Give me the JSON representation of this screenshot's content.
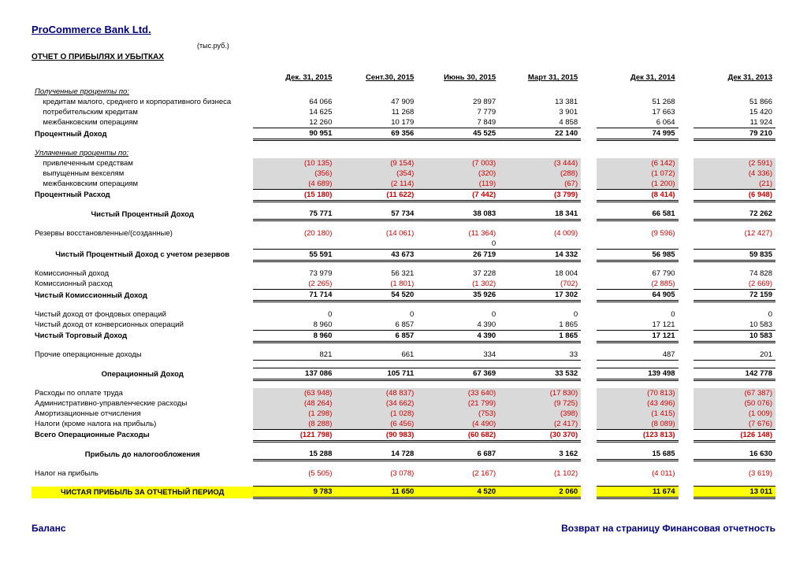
{
  "company": "ProCommerce Bank Ltd.",
  "units": "(тыс.руб.)",
  "report_title": "ОТЧЕТ О ПРИБЫЛЯХ И УБЫТКАХ",
  "headers": [
    "Дек. 31, 2015",
    "Сент.30, 2015",
    "Июнь 30, 2015",
    "Март 31, 2015",
    "Дек 31, 2014",
    "Дек 31, 2013"
  ],
  "sections": {
    "received_interest_header": "Полученные проценты по:",
    "paid_interest_header": "Уплаченные проценты по:"
  },
  "rows": {
    "r1": {
      "label": "кредитам малого, среднего и корпоративного бизнеса",
      "v": [
        "64 066",
        "47 909",
        "29 897",
        "13 381",
        "51 268",
        "51 866"
      ]
    },
    "r2": {
      "label": "потребительским кредитам",
      "v": [
        "14 625",
        "11 268",
        "7 779",
        "3 901",
        "17 663",
        "15 420"
      ]
    },
    "r3": {
      "label": "межбанковским операциям",
      "v": [
        "12 260",
        "10 179",
        "7 849",
        "4 858",
        "6 064",
        "11 924"
      ]
    },
    "r4": {
      "label": "Процентный Доход",
      "v": [
        "90 951",
        "69 356",
        "45 525",
        "22 140",
        "74 995",
        "79 210"
      ]
    },
    "r5": {
      "label": "привлеченным средствам",
      "v": [
        "(10 135)",
        "(9 154)",
        "(7 003)",
        "(3 444)",
        "(6 142)",
        "(2 591)"
      ]
    },
    "r6": {
      "label": "выпущенным векселям",
      "v": [
        "(356)",
        "(354)",
        "(320)",
        "(288)",
        "(1 072)",
        "(4 336)"
      ]
    },
    "r7": {
      "label": "межбанковским операциям",
      "v": [
        "(4 689)",
        "(2 114)",
        "(119)",
        "(67)",
        "(1 200)",
        "(21)"
      ]
    },
    "r8": {
      "label": "Процентный Расход",
      "v": [
        "(15 180)",
        "(11 622)",
        "(7 442)",
        "(3 799)",
        "(8 414)",
        "(6 948)"
      ]
    },
    "r9": {
      "label": "Чистый Процентный Доход",
      "v": [
        "75 771",
        "57 734",
        "38 083",
        "18 341",
        "66 581",
        "72 262"
      ]
    },
    "r10": {
      "label": "Резервы восстановленные/(созданные)",
      "v": [
        "(20 180)",
        "(14 061)",
        "(11 364)",
        "(4 009)",
        "(9 596)",
        "(12 427)"
      ]
    },
    "r10b": {
      "label": "",
      "v": [
        "",
        "",
        "0",
        "",
        "",
        ""
      ]
    },
    "r11": {
      "label": "Чистый Процентный Доход с учетом резервов",
      "v": [
        "55 591",
        "43 673",
        "26 719",
        "14 332",
        "56 985",
        "59 835"
      ]
    },
    "r12": {
      "label": "Комиссионный доход",
      "v": [
        "73 979",
        "56 321",
        "37 228",
        "18 004",
        "67 790",
        "74 828"
      ]
    },
    "r13": {
      "label": "Комиссионный расход",
      "v": [
        "(2 265)",
        "(1 801)",
        "(1 302)",
        "(702)",
        "(2 885)",
        "(2 669)"
      ]
    },
    "r14": {
      "label": "Чистый Комиссионный Доход",
      "v": [
        "71 714",
        "54 520",
        "35 926",
        "17 302",
        "64 905",
        "72 159"
      ]
    },
    "r15": {
      "label": "Чистый доход от фондовых операций",
      "v": [
        "0",
        "0",
        "0",
        "0",
        "0",
        "0"
      ]
    },
    "r16": {
      "label": "Чистый доход от конверсионных операций",
      "v": [
        "8 960",
        "6 857",
        "4 390",
        "1 865",
        "17 121",
        "10 583"
      ]
    },
    "r17": {
      "label": "Чистый Торговый Доход",
      "v": [
        "8 960",
        "6 857",
        "4 390",
        "1 865",
        "17 121",
        "10 583"
      ]
    },
    "r18": {
      "label": "Прочие операционные доходы",
      "v": [
        "821",
        "661",
        "334",
        "33",
        "487",
        "201"
      ]
    },
    "r19": {
      "label": "Операционный Доход",
      "v": [
        "137 086",
        "105 711",
        "67 369",
        "33 532",
        "139 498",
        "142 778"
      ]
    },
    "r20": {
      "label": "Расходы по оплате труда",
      "v": [
        "(63 948)",
        "(48 837)",
        "(33 640)",
        "(17 830)",
        "(70 813)",
        "(67 387)"
      ]
    },
    "r21": {
      "label": "Административно-управленческие расходы",
      "v": [
        "(48 264)",
        "(34 662)",
        "(21 799)",
        "(9 725)",
        "(43 496)",
        "(50 076)"
      ]
    },
    "r22": {
      "label": "Амортизационные отчисления",
      "v": [
        "(1 298)",
        "(1 028)",
        "(753)",
        "(398)",
        "(1 415)",
        "(1 009)"
      ]
    },
    "r23": {
      "label": "Налоги (кроме налога на прибыль)",
      "v": [
        "(8 288)",
        "(6 456)",
        "(4 490)",
        "(2 417)",
        "(8 089)",
        "(7 676)"
      ]
    },
    "r24": {
      "label": "Всего Операционные Расходы",
      "v": [
        "(121 798)",
        "(90 983)",
        "(60 682)",
        "(30 370)",
        "(123 813)",
        "(126 148)"
      ]
    },
    "r25": {
      "label": "Прибыль до налогообложения",
      "v": [
        "15 288",
        "14 728",
        "6 687",
        "3 162",
        "15 685",
        "16 630"
      ]
    },
    "r26": {
      "label": "Налог на прибыль",
      "v": [
        "(5 505)",
        "(3 078)",
        "(2 167)",
        "(1 102)",
        "(4 011)",
        "(3 619)"
      ]
    },
    "r27": {
      "label": "ЧИСТАЯ ПРИБЫЛЬ ЗА ОТЧЕТНЫЙ ПЕРИОД",
      "v": [
        "9 783",
        "11 650",
        "4 520",
        "2 060",
        "11 674",
        "13 011"
      ]
    }
  },
  "footer": {
    "left": "Баланс",
    "right": "Возврат на страницу Финансовая отчетность"
  }
}
